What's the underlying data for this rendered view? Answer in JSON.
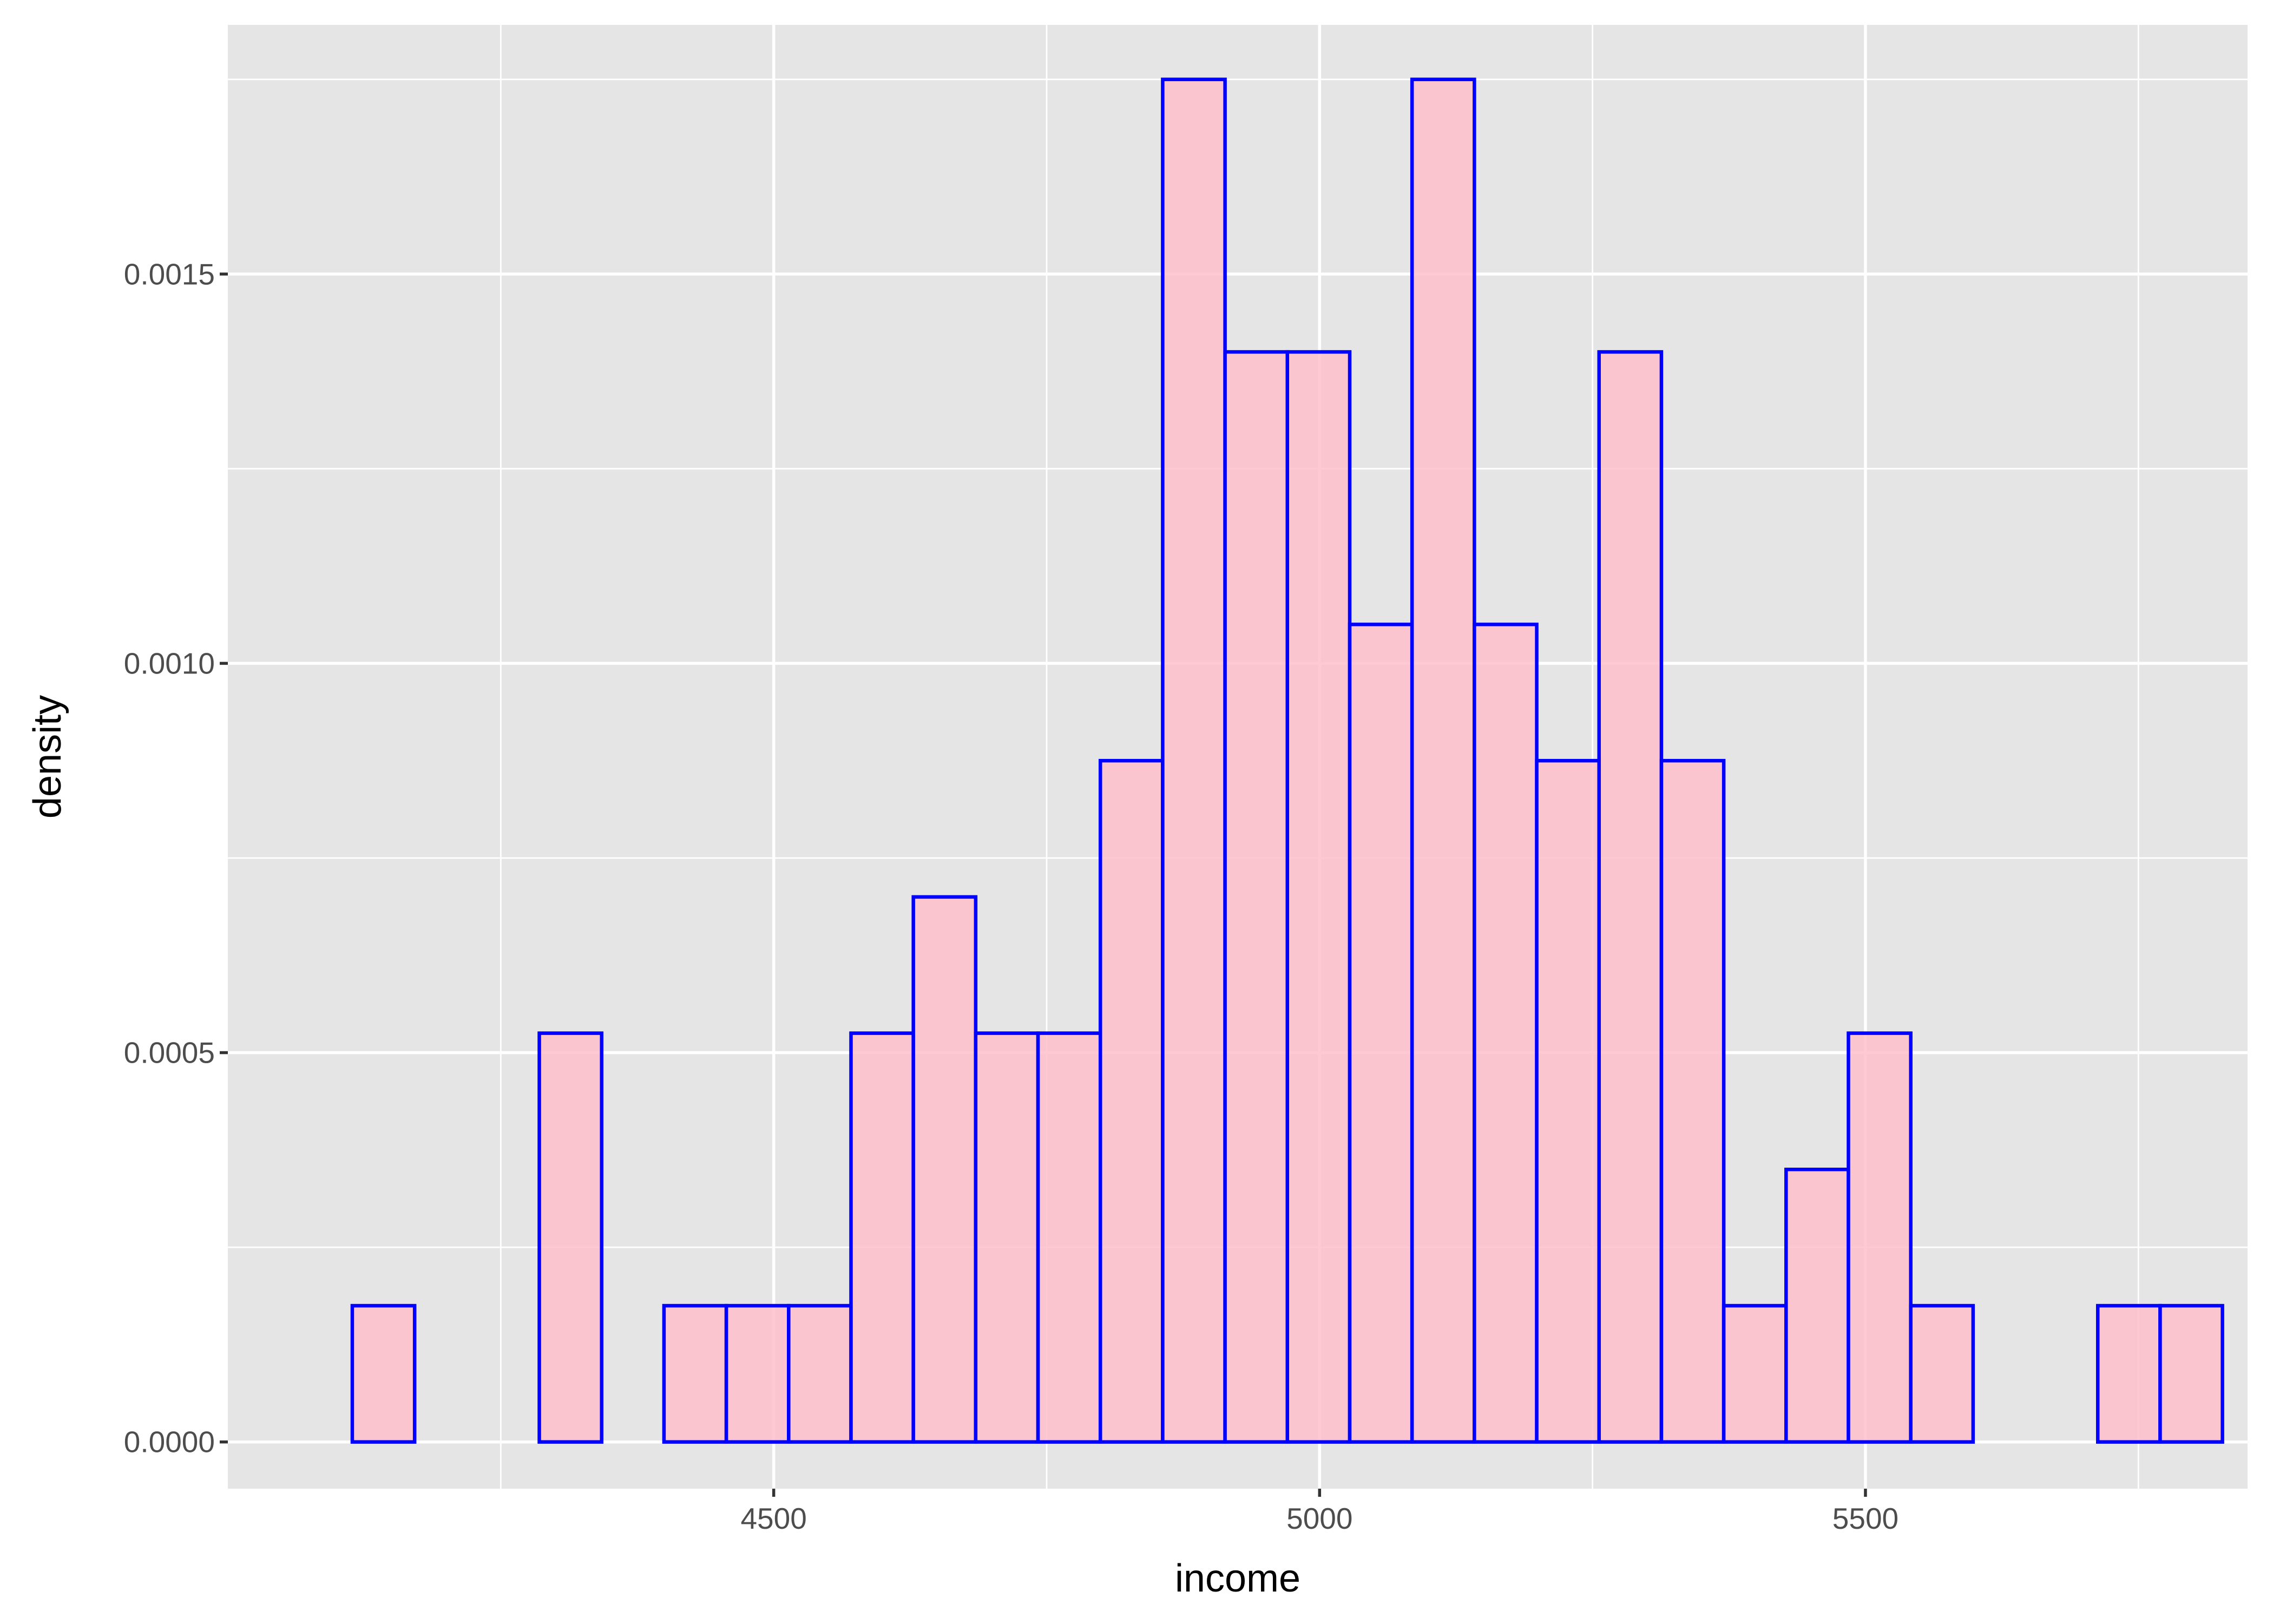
{
  "chart_data": {
    "type": "histogram",
    "xlabel": "income",
    "ylabel": "density",
    "xlim": [
      4000,
      5850
    ],
    "ylim": [
      -6e-05,
      0.00182
    ],
    "x_ticks": [
      4500,
      5000,
      5500
    ],
    "x_tick_labels": [
      "4500",
      "5000",
      "5500"
    ],
    "y_ticks": [
      0.0,
      0.0005,
      0.001,
      0.0015
    ],
    "y_tick_labels": [
      "0.0000",
      "0.0005",
      "0.0010",
      "0.0015"
    ],
    "grid": true,
    "bin_width": 57.1,
    "bins": [
      {
        "x0": 4114.0,
        "x1": 4171.1,
        "density": 0.000175
      },
      {
        "x0": 4171.1,
        "x1": 4228.2,
        "density": 0.0
      },
      {
        "x0": 4228.2,
        "x1": 4285.3,
        "density": 0.0
      },
      {
        "x0": 4285.3,
        "x1": 4342.4,
        "density": 0.000525
      },
      {
        "x0": 4342.4,
        "x1": 4399.5,
        "density": 0.0
      },
      {
        "x0": 4399.5,
        "x1": 4456.6,
        "density": 0.000175
      },
      {
        "x0": 4456.6,
        "x1": 4513.7,
        "density": 0.000175
      },
      {
        "x0": 4513.7,
        "x1": 4570.8,
        "density": 0.000175
      },
      {
        "x0": 4570.8,
        "x1": 4627.9,
        "density": 0.000525
      },
      {
        "x0": 4627.9,
        "x1": 4685.0,
        "density": 0.0007
      },
      {
        "x0": 4685.0,
        "x1": 4742.1,
        "density": 0.000525
      },
      {
        "x0": 4742.1,
        "x1": 4799.2,
        "density": 0.000525
      },
      {
        "x0": 4799.2,
        "x1": 4856.3,
        "density": 0.000875
      },
      {
        "x0": 4856.3,
        "x1": 4913.4,
        "density": 0.00175
      },
      {
        "x0": 4913.4,
        "x1": 4970.5,
        "density": 0.0014
      },
      {
        "x0": 4970.5,
        "x1": 5027.6,
        "density": 0.0014
      },
      {
        "x0": 5027.6,
        "x1": 5084.7,
        "density": 0.00105
      },
      {
        "x0": 5084.7,
        "x1": 5141.8,
        "density": 0.00175
      },
      {
        "x0": 5141.8,
        "x1": 5198.9,
        "density": 0.00105
      },
      {
        "x0": 5198.9,
        "x1": 5256.0,
        "density": 0.000875
      },
      {
        "x0": 5256.0,
        "x1": 5313.1,
        "density": 0.0014
      },
      {
        "x0": 5313.1,
        "x1": 5370.2,
        "density": 0.000875
      },
      {
        "x0": 5370.2,
        "x1": 5427.3,
        "density": 0.000175
      },
      {
        "x0": 5427.3,
        "x1": 5484.4,
        "density": 0.00035
      },
      {
        "x0": 5484.4,
        "x1": 5541.5,
        "density": 0.000525
      },
      {
        "x0": 5541.5,
        "x1": 5598.6,
        "density": 0.000175
      },
      {
        "x0": 5598.6,
        "x1": 5655.7,
        "density": 0.0
      },
      {
        "x0": 5655.7,
        "x1": 5712.8,
        "density": 0.0
      },
      {
        "x0": 5712.8,
        "x1": 5769.9,
        "density": 0.000175
      },
      {
        "x0": 5769.9,
        "x1": 5827.0,
        "density": 0.000175
      }
    ],
    "colors": {
      "panel": "#e5e5e5",
      "bar_fill": "#ffc0cb",
      "bar_outline": "#0000ff",
      "grid": "#ffffff"
    }
  }
}
